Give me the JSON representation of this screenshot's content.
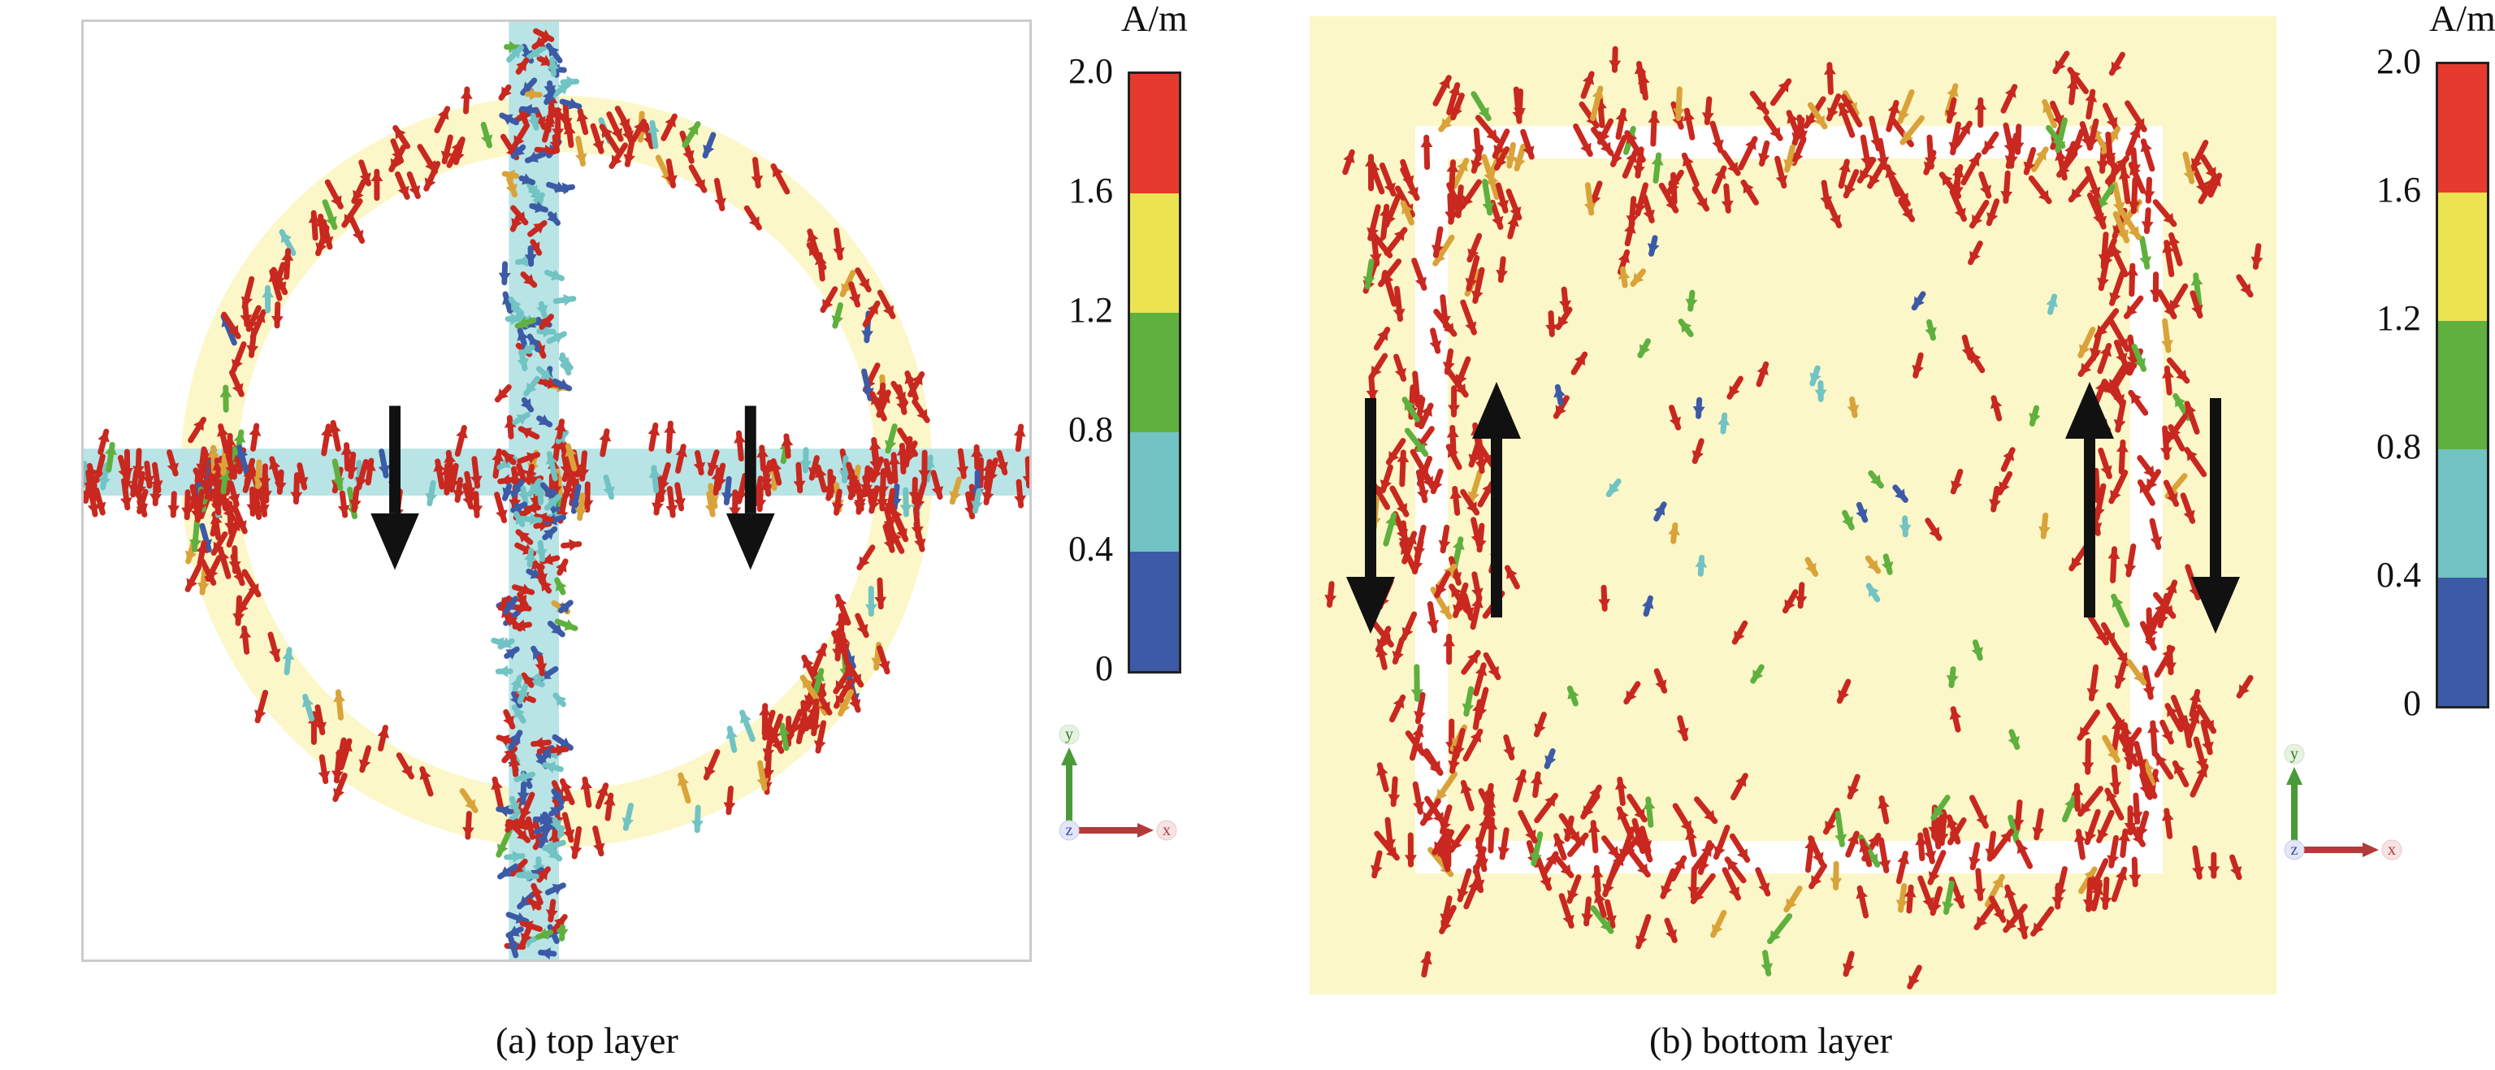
{
  "panels": [
    {
      "caption": "(a) top layer",
      "colorbar": {
        "unit": "A/m",
        "ticks": [
          "2.0",
          "1.6",
          "1.2",
          "0.8",
          "0.4",
          "0"
        ]
      },
      "axes": {
        "y": "y",
        "z": "z",
        "x": "x"
      }
    },
    {
      "caption": "(b) bottom layer",
      "colorbar": {
        "unit": "A/m",
        "ticks": [
          "2.0",
          "1.6",
          "1.2",
          "0.8",
          "0.4",
          "0"
        ]
      },
      "axes": {
        "y": "y",
        "z": "z",
        "x": "x"
      }
    }
  ],
  "colors": {
    "range_0_0.4": "#3d5aa6",
    "range_0.4_0.8": "#72c3c3",
    "range_0.8_1.2": "#5fb03e",
    "range_1.2_1.6": "#ece351",
    "range_1.6_2.0": "#e63a2e",
    "vector_red": "#c8281f",
    "trace_fill": "#fbf7c8",
    "feed_fill": "#b8e4e6",
    "direction_arrow": "#111111"
  }
}
